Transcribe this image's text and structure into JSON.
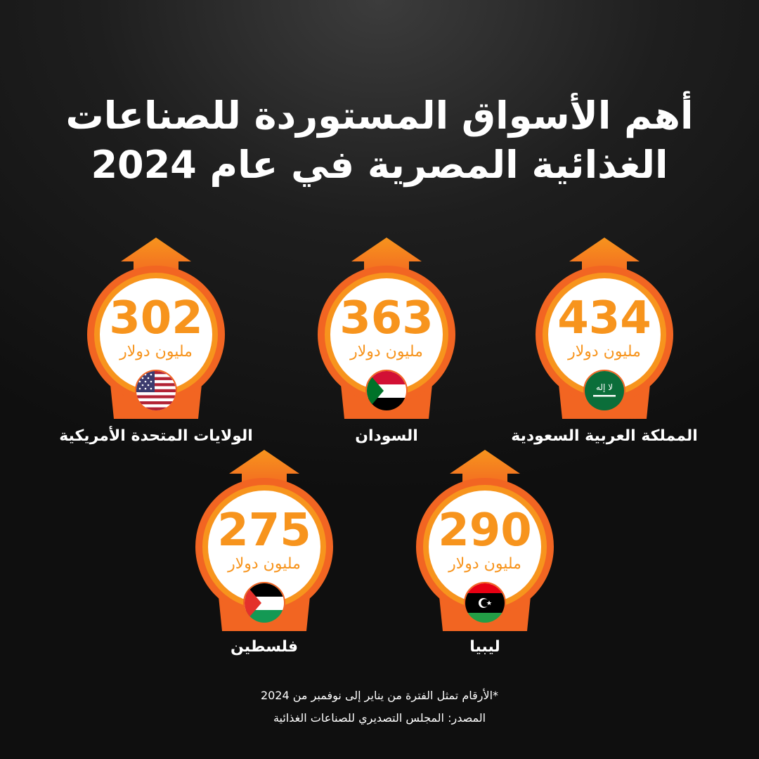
{
  "title": [
    "أهم الأسواق المستوردة للصناعات",
    "الغذائية المصرية في عام 2024"
  ],
  "unit_label": "مليون دولار",
  "colors": {
    "accent": "#f7941d",
    "ring": "#f26522",
    "circle": "#ffffff",
    "background": "#1a1a1a"
  },
  "chart_data": {
    "type": "bar",
    "categories": [
      "المملكة العربية السعودية",
      "السودان",
      "الولايات المتحدة الأمريكية",
      "ليبيا",
      "فلسطين"
    ],
    "values": [
      434,
      363,
      302,
      290,
      275
    ],
    "value_labels": [
      "434",
      "363",
      "302",
      "290",
      "275"
    ],
    "flags": [
      "saudi-arabia-flag-icon",
      "sudan-flag-icon",
      "usa-flag-icon",
      "libya-flag-icon",
      "palestine-flag-icon"
    ]
  },
  "footnote": "*الأرقام تمثل الفترة من يناير إلى نوفمبر من 2024",
  "source": "المصدر: المجلس التصديري للصناعات الغذائية"
}
